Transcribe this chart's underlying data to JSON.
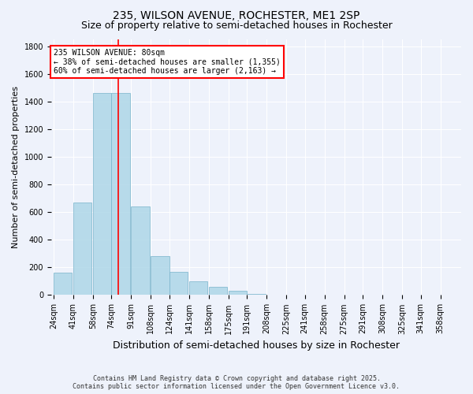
{
  "title_line1": "235, WILSON AVENUE, ROCHESTER, ME1 2SP",
  "title_line2": "Size of property relative to semi-detached houses in Rochester",
  "xlabel": "Distribution of semi-detached houses by size in Rochester",
  "ylabel": "Number of semi-detached properties",
  "categories": [
    "24sqm",
    "41sqm",
    "58sqm",
    "74sqm",
    "91sqm",
    "108sqm",
    "124sqm",
    "141sqm",
    "158sqm",
    "175sqm",
    "191sqm",
    "208sqm",
    "225sqm",
    "241sqm",
    "258sqm",
    "275sqm",
    "291sqm",
    "308sqm",
    "325sqm",
    "341sqm",
    "358sqm"
  ],
  "values": [
    160,
    670,
    1460,
    1460,
    640,
    280,
    170,
    100,
    60,
    30,
    10,
    5,
    2,
    1,
    1,
    0,
    0,
    0,
    0,
    0,
    0
  ],
  "bar_color": "#aed6e8",
  "bar_edge_color": "#7ab4cc",
  "bar_alpha": 0.85,
  "red_line_index": 3,
  "annotation_line1": "235 WILSON AVENUE: 80sqm",
  "annotation_line2": "← 38% of semi-detached houses are smaller (1,355)",
  "annotation_line3": "60% of semi-detached houses are larger (2,163) →",
  "annotation_box_color": "white",
  "annotation_box_edge": "red",
  "ylim": [
    0,
    1850
  ],
  "yticks": [
    0,
    200,
    400,
    600,
    800,
    1000,
    1200,
    1400,
    1600,
    1800
  ],
  "footnote_line1": "Contains HM Land Registry data © Crown copyright and database right 2025.",
  "footnote_line2": "Contains public sector information licensed under the Open Government Licence v3.0.",
  "bg_color": "#eef2fb",
  "grid_color": "white",
  "title_fontsize": 10,
  "subtitle_fontsize": 9,
  "tick_fontsize": 7,
  "ylabel_fontsize": 8,
  "xlabel_fontsize": 9,
  "bin_starts": [
    24,
    41,
    58,
    74,
    91,
    108,
    124,
    141,
    158,
    175,
    191,
    208,
    225,
    241,
    258,
    275,
    291,
    308,
    325,
    341,
    358
  ],
  "bin_width": 16
}
